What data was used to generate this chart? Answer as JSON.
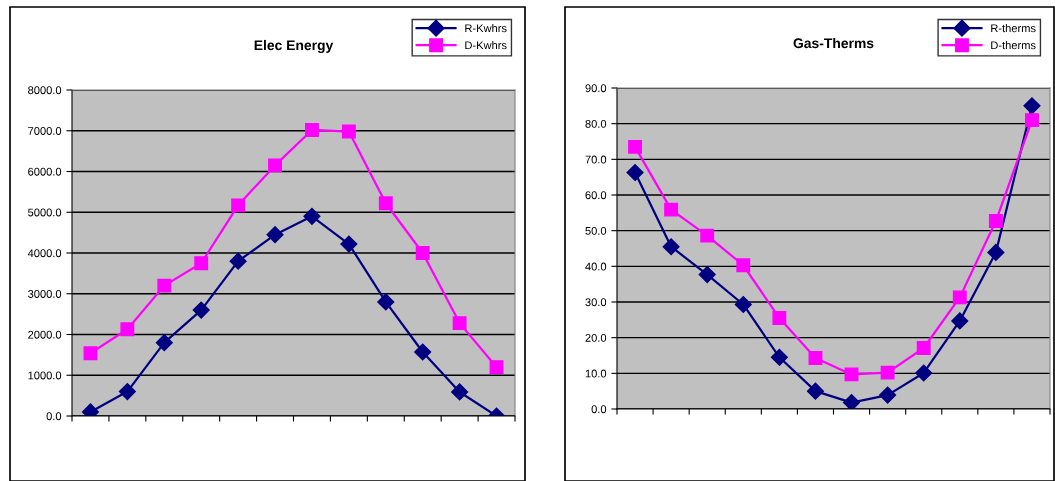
{
  "chart_data": [
    {
      "type": "line",
      "title": "Elec Energy",
      "categories": [
        null,
        null,
        null,
        null,
        null,
        null,
        null,
        null,
        null,
        null,
        null,
        null
      ],
      "series": [
        {
          "name": "R-Kwhrs",
          "color": "#000080",
          "marker": "diamond",
          "values": [
            100,
            600,
            1800,
            2600,
            3800,
            4450,
            4900,
            4220,
            2800,
            1570,
            590,
            0
          ]
        },
        {
          "name": "D-Kwhrs",
          "color": "#ff00ff",
          "marker": "square",
          "values": [
            1540,
            2130,
            3200,
            3750,
            5170,
            6150,
            7020,
            6980,
            5220,
            4000,
            2280,
            1200
          ]
        }
      ],
      "ylim": [
        0,
        8000
      ],
      "yticks": [
        {
          "value": 0,
          "label": "0.0"
        },
        {
          "value": 1000,
          "label": "1000.0"
        },
        {
          "value": 2000,
          "label": "2000.0"
        },
        {
          "value": 3000,
          "label": "3000.0"
        },
        {
          "value": 4000,
          "label": "4000.0"
        },
        {
          "value": 5000,
          "label": "5000.0"
        },
        {
          "value": 6000,
          "label": "6000.0"
        },
        {
          "value": 7000,
          "label": "7000.0"
        },
        {
          "value": 8000,
          "label": "8000.0"
        }
      ],
      "grid": "y",
      "legend": "top right",
      "tick_labels": "y",
      "line_style": "solid"
    },
    {
      "type": "line",
      "title": "Gas-Therms",
      "categories": [
        null,
        null,
        null,
        null,
        null,
        null,
        null,
        null,
        null,
        null,
        null,
        null
      ],
      "series": [
        {
          "name": "R-therms",
          "color": "#000080",
          "marker": "diamond",
          "values": [
            66.3,
            45.5,
            37.7,
            29.3,
            14.5,
            5.0,
            1.8,
            3.9,
            10.1,
            24.7,
            43.9,
            85.0
          ]
        },
        {
          "name": "D-therms",
          "color": "#ff00ff",
          "marker": "square",
          "values": [
            73.5,
            55.9,
            48.6,
            40.3,
            25.5,
            14.3,
            9.7,
            10.2,
            17.1,
            31.3,
            52.7,
            81.0
          ]
        }
      ],
      "ylim": [
        0,
        90
      ],
      "yticks": [
        {
          "value": 0,
          "label": "0.0"
        },
        {
          "value": 10,
          "label": "10.0"
        },
        {
          "value": 20,
          "label": "20.0"
        },
        {
          "value": 30,
          "label": "30.0"
        },
        {
          "value": 40,
          "label": "40.0"
        },
        {
          "value": 50,
          "label": "50.0"
        },
        {
          "value": 60,
          "label": "60.0"
        },
        {
          "value": 70,
          "label": "70.0"
        },
        {
          "value": 80,
          "label": "80.0"
        },
        {
          "value": 90,
          "label": "90.0"
        }
      ],
      "grid": "y",
      "legend": "top right",
      "tick_labels": "y",
      "line_style": "solid"
    }
  ]
}
